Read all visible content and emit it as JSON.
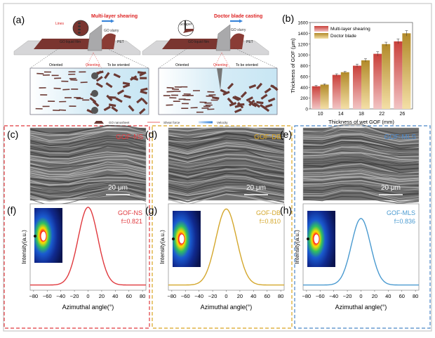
{
  "panel_labels": {
    "a": "(a)",
    "b": "(b)",
    "c": "(c)",
    "d": "(d)",
    "e": "(e)",
    "f": "(f)",
    "g": "(g)",
    "h": "(h)"
  },
  "schematic": {
    "left_title": "Multi-layer shearing",
    "right_title": "Doctor blade casting",
    "lines_label": "Lines",
    "scraper_label": "Scraper",
    "slurry_label": "GO slurry",
    "film_label": "GO liquid film",
    "pet_label": "PET",
    "oriented": "Oriented",
    "orienting": "Orienting",
    "to_be_oriented": "To be oriented",
    "legend": {
      "nanosheet": "GO nanosheet",
      "shear": "Shear force",
      "velocity": "Velocity"
    }
  },
  "sem": [
    {
      "label": "GOF-NS",
      "scale": "20 μm",
      "color": "#e0393e"
    },
    {
      "label": "GOF-DB",
      "scale": "20 μm",
      "color": "#d9a520"
    },
    {
      "label": "GOF-MLS",
      "scale": "20 μm",
      "color": "#4a86c8"
    }
  ],
  "colors": {
    "ns": "#e0393e",
    "db": "#d4a72c",
    "mls": "#4a9ad0",
    "bar_mls": "#c9403a",
    "bar_db": "#b8902e"
  },
  "chart_data": [
    {
      "type": "bar",
      "categories": [
        "10",
        "14",
        "18",
        "22",
        "26"
      ],
      "series": [
        {
          "name": "Multi-layer shearing",
          "values": [
            420,
            630,
            800,
            1020,
            1250
          ],
          "errors": [
            15,
            20,
            30,
            40,
            45
          ]
        },
        {
          "name": "Doctor blade",
          "values": [
            450,
            680,
            900,
            1200,
            1400
          ],
          "errors": [
            15,
            15,
            30,
            35,
            50
          ]
        }
      ],
      "xlabel": "Thickness of wet GOF (mm)",
      "ylabel": "Thickness of GOF (μm)",
      "ylim": [
        0,
        1600
      ],
      "yticks": [
        "0",
        "200",
        "400",
        "600",
        "800",
        "1000",
        "1200",
        "1400",
        "1600"
      ],
      "legend": "top-left"
    },
    {
      "type": "line",
      "label": "GOF-NS",
      "f_label": "f=0.821",
      "xlabel": "Azimuthal angle(°)",
      "ylabel": "Intensity(a.u.)",
      "xlim": [
        -85,
        85
      ],
      "xticks": [
        "-80",
        "-60",
        "-40",
        "-20",
        "0",
        "20",
        "40",
        "60",
        "80"
      ],
      "peak_center": 0,
      "peak_fwhm": 34
    },
    {
      "type": "line",
      "label": "GOF-DB",
      "f_label": "f=0.810",
      "xlabel": "Azimuthal angle(°)",
      "ylabel": "Intensity(a.u.)",
      "xlim": [
        -85,
        85
      ],
      "xticks": [
        "-80",
        "-60",
        "-40",
        "-20",
        "0",
        "20",
        "40",
        "60",
        "80"
      ],
      "peak_center": 0,
      "peak_fwhm": 36
    },
    {
      "type": "line",
      "label": "GOF-MLS",
      "f_label": "f=0.836",
      "xlabel": "Azimuthal angle(°)",
      "ylabel": "Intensity(a.u.)",
      "xlim": [
        -85,
        85
      ],
      "xticks": [
        "-80",
        "-60",
        "-40",
        "-20",
        "0",
        "20",
        "40",
        "60",
        "80"
      ],
      "peak_center": 0,
      "peak_fwhm": 33
    }
  ]
}
